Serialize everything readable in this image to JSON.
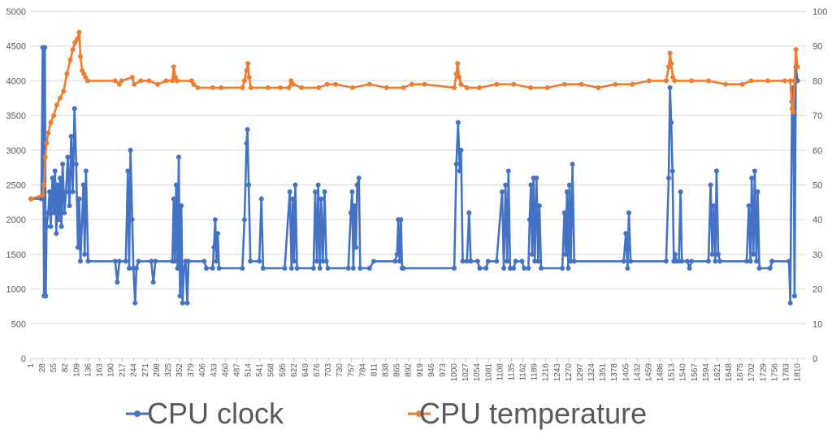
{
  "chart_data": {
    "type": "line",
    "x_start": 1,
    "x_end": 1830,
    "x_tick_labels": [
      "1",
      "28",
      "55",
      "82",
      "109",
      "136",
      "163",
      "190",
      "217",
      "244",
      "271",
      "298",
      "325",
      "352",
      "379",
      "406",
      "433",
      "460",
      "487",
      "514",
      "541",
      "568",
      "595",
      "622",
      "649",
      "676",
      "703",
      "730",
      "757",
      "784",
      "811",
      "838",
      "865",
      "892",
      "919",
      "946",
      "973",
      "1000",
      "1027",
      "1054",
      "1081",
      "1108",
      "1135",
      "1162",
      "1189",
      "1216",
      "1243",
      "1270",
      "1297",
      "1324",
      "1351",
      "1378",
      "1405",
      "1432",
      "1459",
      "1486",
      "1513",
      "1540",
      "1567",
      "1594",
      "1621",
      "1648",
      "1675",
      "1702",
      "1729",
      "1756",
      "1783",
      "1810"
    ],
    "y_left_ticks": [
      "0",
      "500",
      "1000",
      "1500",
      "2000",
      "2500",
      "3000",
      "3500",
      "4000",
      "4500",
      "5000"
    ],
    "y_left_range": [
      0,
      5000
    ],
    "y_right_ticks": [
      "0",
      "10",
      "20",
      "30",
      "40",
      "50",
      "60",
      "70",
      "80",
      "90",
      "100"
    ],
    "y_right_range": [
      0,
      100
    ],
    "grid": "horizontal",
    "legend_position": "bottom",
    "series": [
      {
        "name": "CPU clock",
        "axis": "left",
        "color": "#4472C4",
        "points": [
          [
            1,
            2300
          ],
          [
            26,
            2300
          ],
          [
            29,
            4480
          ],
          [
            32,
            900
          ],
          [
            34,
            4480
          ],
          [
            36,
            900
          ],
          [
            38,
            1900
          ],
          [
            42,
            2100
          ],
          [
            45,
            2400
          ],
          [
            48,
            1900
          ],
          [
            52,
            2600
          ],
          [
            55,
            2100
          ],
          [
            58,
            2700
          ],
          [
            61,
            1800
          ],
          [
            64,
            2500
          ],
          [
            67,
            2000
          ],
          [
            70,
            2600
          ],
          [
            73,
            1900
          ],
          [
            76,
            2800
          ],
          [
            80,
            2100
          ],
          [
            84,
            2400
          ],
          [
            88,
            2900
          ],
          [
            92,
            2200
          ],
          [
            96,
            3200
          ],
          [
            100,
            2400
          ],
          [
            104,
            3600
          ],
          [
            108,
            2800
          ],
          [
            112,
            1600
          ],
          [
            115,
            2300
          ],
          [
            118,
            1400
          ],
          [
            125,
            2500
          ],
          [
            128,
            1500
          ],
          [
            131,
            2700
          ],
          [
            136,
            1400
          ],
          [
            200,
            1400
          ],
          [
            205,
            1100
          ],
          [
            210,
            1400
          ],
          [
            225,
            1400
          ],
          [
            230,
            2700
          ],
          [
            233,
            1300
          ],
          [
            236,
            3000
          ],
          [
            240,
            2000
          ],
          [
            243,
            1300
          ],
          [
            247,
            800
          ],
          [
            250,
            1300
          ],
          [
            255,
            1400
          ],
          [
            285,
            1400
          ],
          [
            290,
            1100
          ],
          [
            295,
            1400
          ],
          [
            335,
            1400
          ],
          [
            338,
            2300
          ],
          [
            341,
            1400
          ],
          [
            344,
            2500
          ],
          [
            347,
            1300
          ],
          [
            350,
            2900
          ],
          [
            353,
            900
          ],
          [
            356,
            2200
          ],
          [
            359,
            800
          ],
          [
            362,
            1300
          ],
          [
            366,
            1400
          ],
          [
            370,
            800
          ],
          [
            373,
            1400
          ],
          [
            410,
            1400
          ],
          [
            415,
            1300
          ],
          [
            430,
            1300
          ],
          [
            433,
            1600
          ],
          [
            436,
            2000
          ],
          [
            439,
            1400
          ],
          [
            442,
            1800
          ],
          [
            445,
            1300
          ],
          [
            500,
            1300
          ],
          [
            505,
            2000
          ],
          [
            510,
            3100
          ],
          [
            512,
            3300
          ],
          [
            515,
            2500
          ],
          [
            519,
            1400
          ],
          [
            540,
            1400
          ],
          [
            545,
            2300
          ],
          [
            549,
            1300
          ],
          [
            600,
            1300
          ],
          [
            612,
            2400
          ],
          [
            616,
            1300
          ],
          [
            619,
            2300
          ],
          [
            622,
            1400
          ],
          [
            625,
            2500
          ],
          [
            629,
            1300
          ],
          [
            668,
            1300
          ],
          [
            672,
            2400
          ],
          [
            676,
            1400
          ],
          [
            679,
            2500
          ],
          [
            683,
            1300
          ],
          [
            686,
            2300
          ],
          [
            690,
            1400
          ],
          [
            694,
            2400
          ],
          [
            698,
            1400
          ],
          [
            702,
            1300
          ],
          [
            750,
            1300
          ],
          [
            756,
            2100
          ],
          [
            759,
            2400
          ],
          [
            762,
            1300
          ],
          [
            765,
            2200
          ],
          [
            768,
            1600
          ],
          [
            771,
            2500
          ],
          [
            775,
            2600
          ],
          [
            778,
            1300
          ],
          [
            800,
            1300
          ],
          [
            810,
            1400
          ],
          [
            860,
            1400
          ],
          [
            865,
            1500
          ],
          [
            868,
            2000
          ],
          [
            871,
            1400
          ],
          [
            874,
            2000
          ],
          [
            877,
            1300
          ],
          [
            880,
            1300
          ],
          [
            1000,
            1300
          ],
          [
            1005,
            2800
          ],
          [
            1009,
            3400
          ],
          [
            1013,
            2700
          ],
          [
            1016,
            3000
          ],
          [
            1020,
            1400
          ],
          [
            1030,
            1400
          ],
          [
            1035,
            2100
          ],
          [
            1039,
            1400
          ],
          [
            1055,
            1400
          ],
          [
            1060,
            1300
          ],
          [
            1075,
            1300
          ],
          [
            1080,
            1400
          ],
          [
            1100,
            1400
          ],
          [
            1113,
            2400
          ],
          [
            1117,
            1300
          ],
          [
            1121,
            2500
          ],
          [
            1125,
            1400
          ],
          [
            1128,
            2700
          ],
          [
            1132,
            1300
          ],
          [
            1140,
            1300
          ],
          [
            1145,
            1400
          ],
          [
            1160,
            1400
          ],
          [
            1165,
            1300
          ],
          [
            1175,
            1300
          ],
          [
            1178,
            2000
          ],
          [
            1181,
            2500
          ],
          [
            1184,
            1500
          ],
          [
            1187,
            2600
          ],
          [
            1190,
            1400
          ],
          [
            1194,
            2600
          ],
          [
            1198,
            1400
          ],
          [
            1201,
            2200
          ],
          [
            1205,
            1300
          ],
          [
            1255,
            1300
          ],
          [
            1260,
            2100
          ],
          [
            1263,
            1500
          ],
          [
            1266,
            2400
          ],
          [
            1269,
            1300
          ],
          [
            1272,
            2500
          ],
          [
            1275,
            1400
          ],
          [
            1279,
            2800
          ],
          [
            1283,
            1400
          ],
          [
            1400,
            1400
          ],
          [
            1405,
            1800
          ],
          [
            1409,
            1300
          ],
          [
            1412,
            2100
          ],
          [
            1416,
            1400
          ],
          [
            1500,
            1400
          ],
          [
            1506,
            2600
          ],
          [
            1509,
            3900
          ],
          [
            1512,
            3400
          ],
          [
            1515,
            2700
          ],
          [
            1518,
            1400
          ],
          [
            1521,
            1500
          ],
          [
            1524,
            1400
          ],
          [
            1530,
            1400
          ],
          [
            1534,
            2400
          ],
          [
            1537,
            1400
          ],
          [
            1550,
            1400
          ],
          [
            1555,
            1300
          ],
          [
            1560,
            1400
          ],
          [
            1600,
            1400
          ],
          [
            1605,
            2500
          ],
          [
            1609,
            1500
          ],
          [
            1612,
            2200
          ],
          [
            1616,
            1400
          ],
          [
            1619,
            2700
          ],
          [
            1623,
            1500
          ],
          [
            1627,
            1400
          ],
          [
            1690,
            1400
          ],
          [
            1695,
            2200
          ],
          [
            1699,
            1400
          ],
          [
            1702,
            2600
          ],
          [
            1706,
            1500
          ],
          [
            1709,
            2700
          ],
          [
            1713,
            1400
          ],
          [
            1716,
            2400
          ],
          [
            1720,
            1300
          ],
          [
            1745,
            1300
          ],
          [
            1750,
            1400
          ],
          [
            1790,
            1400
          ],
          [
            1793,
            800
          ],
          [
            1797,
            3700
          ],
          [
            1800,
            3900
          ],
          [
            1803,
            900
          ],
          [
            1806,
            4200
          ],
          [
            1810,
            4000
          ]
        ]
      },
      {
        "name": "CPU temperature",
        "axis": "right",
        "color": "#ED7D31",
        "points": [
          [
            1,
            46
          ],
          [
            28,
            47
          ],
          [
            32,
            50
          ],
          [
            35,
            58
          ],
          [
            38,
            62
          ],
          [
            42,
            65
          ],
          [
            48,
            68
          ],
          [
            55,
            70
          ],
          [
            62,
            73
          ],
          [
            70,
            75
          ],
          [
            78,
            77
          ],
          [
            86,
            82
          ],
          [
            94,
            86
          ],
          [
            100,
            89
          ],
          [
            105,
            91
          ],
          [
            110,
            92
          ],
          [
            115,
            94
          ],
          [
            118,
            87
          ],
          [
            122,
            83
          ],
          [
            126,
            82
          ],
          [
            130,
            81
          ],
          [
            135,
            80
          ],
          [
            200,
            80
          ],
          [
            210,
            79
          ],
          [
            215,
            80
          ],
          [
            240,
            81
          ],
          [
            245,
            79
          ],
          [
            260,
            80
          ],
          [
            280,
            80
          ],
          [
            300,
            79
          ],
          [
            320,
            80
          ],
          [
            335,
            80
          ],
          [
            338,
            84
          ],
          [
            342,
            81
          ],
          [
            346,
            80
          ],
          [
            380,
            80
          ],
          [
            385,
            79
          ],
          [
            395,
            78
          ],
          [
            430,
            78
          ],
          [
            450,
            78
          ],
          [
            500,
            78
          ],
          [
            505,
            80
          ],
          [
            510,
            83
          ],
          [
            513,
            85
          ],
          [
            516,
            81
          ],
          [
            520,
            78
          ],
          [
            560,
            78
          ],
          [
            590,
            78
          ],
          [
            610,
            78
          ],
          [
            615,
            80
          ],
          [
            620,
            79
          ],
          [
            640,
            78
          ],
          [
            680,
            78
          ],
          [
            700,
            79
          ],
          [
            720,
            79
          ],
          [
            760,
            78
          ],
          [
            800,
            79
          ],
          [
            840,
            78
          ],
          [
            880,
            78
          ],
          [
            900,
            79
          ],
          [
            930,
            79
          ],
          [
            1000,
            78
          ],
          [
            1005,
            82
          ],
          [
            1008,
            85
          ],
          [
            1012,
            81
          ],
          [
            1016,
            79
          ],
          [
            1030,
            78
          ],
          [
            1060,
            78
          ],
          [
            1100,
            79
          ],
          [
            1140,
            79
          ],
          [
            1180,
            78
          ],
          [
            1220,
            78
          ],
          [
            1260,
            79
          ],
          [
            1300,
            79
          ],
          [
            1340,
            78
          ],
          [
            1380,
            79
          ],
          [
            1420,
            79
          ],
          [
            1460,
            80
          ],
          [
            1500,
            80
          ],
          [
            1506,
            84
          ],
          [
            1509,
            88
          ],
          [
            1512,
            85
          ],
          [
            1516,
            81
          ],
          [
            1520,
            80
          ],
          [
            1560,
            80
          ],
          [
            1600,
            80
          ],
          [
            1640,
            79
          ],
          [
            1680,
            79
          ],
          [
            1700,
            80
          ],
          [
            1740,
            80
          ],
          [
            1780,
            80
          ],
          [
            1793,
            80
          ],
          [
            1797,
            72
          ],
          [
            1800,
            71
          ],
          [
            1803,
            80
          ],
          [
            1806,
            89
          ],
          [
            1810,
            84
          ]
        ]
      }
    ]
  }
}
